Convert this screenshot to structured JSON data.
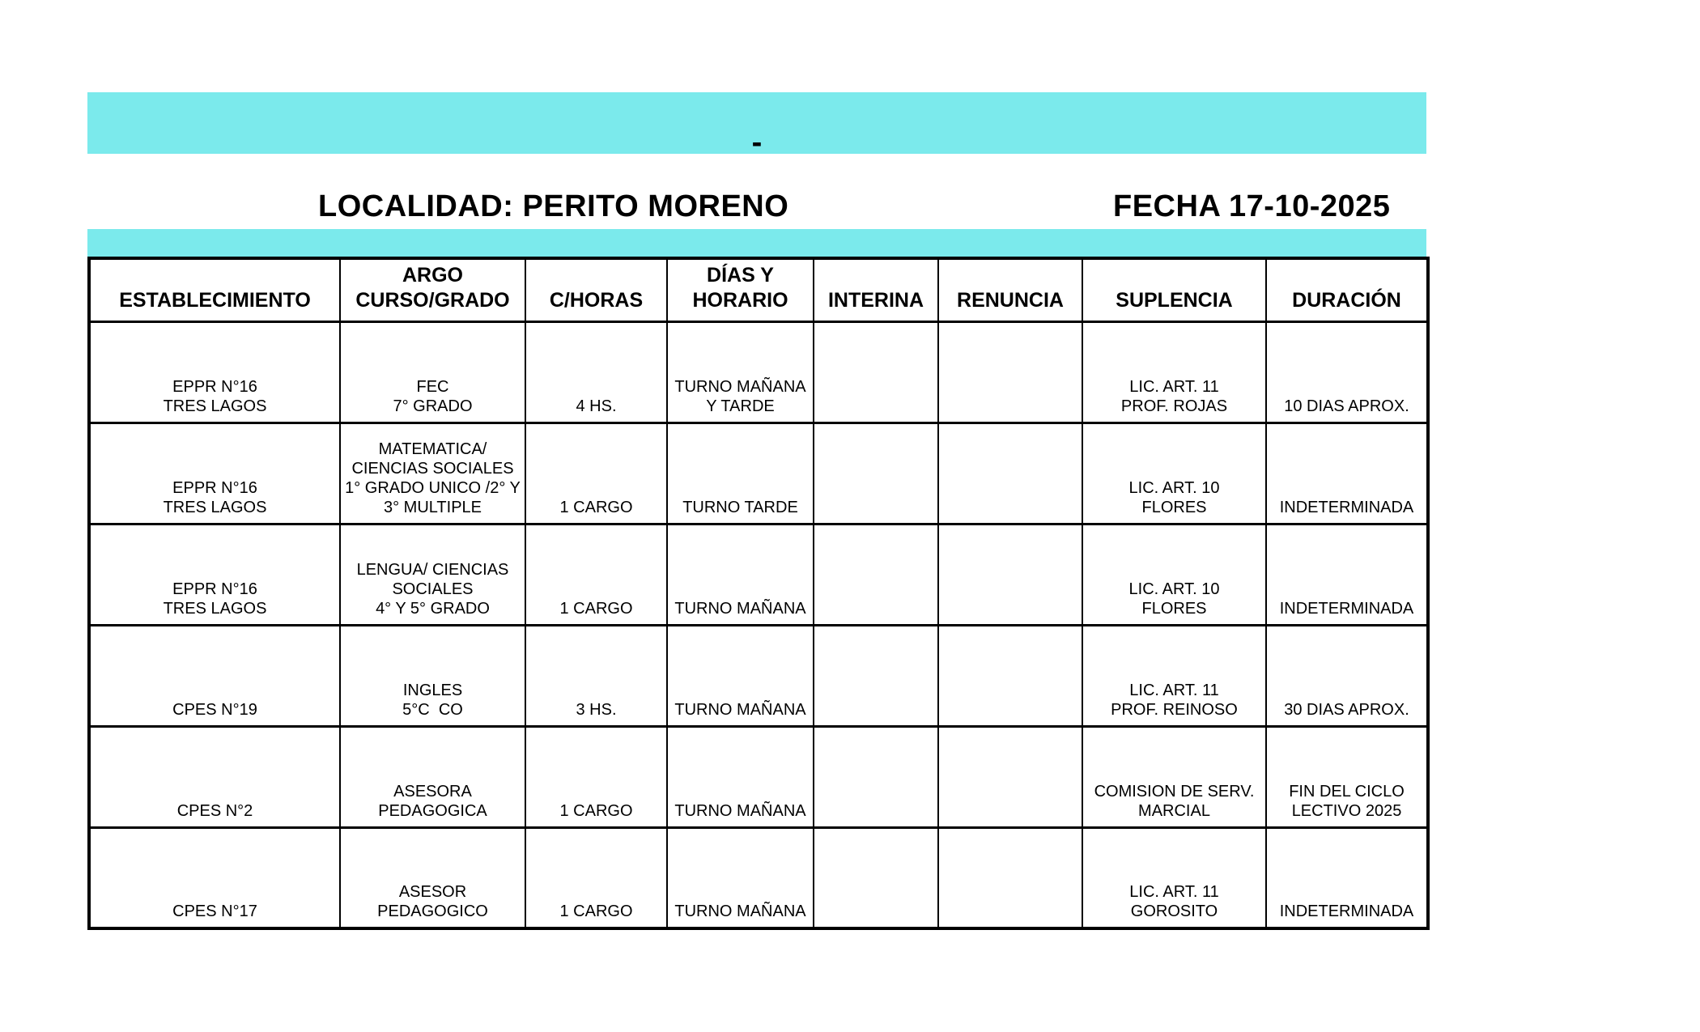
{
  "page": {
    "banner_dash": "-",
    "locality_label": "LOCALIDAD: PERITO MORENO",
    "date_label": "FECHA 17-10-2025"
  },
  "colors": {
    "banner_fill": "#7BEAEC",
    "border": "#000000",
    "background": "#FFFFFF",
    "text": "#000000"
  },
  "table": {
    "columns": [
      {
        "key": "establecimiento",
        "label": "ESTABLECIMIENTO"
      },
      {
        "key": "argo_curso_grado",
        "label": "ARGO\nCURSO/GRADO"
      },
      {
        "key": "c_horas",
        "label": "C/HORAS"
      },
      {
        "key": "dias_y_horario",
        "label": "DÍAS Y\nHORARIO"
      },
      {
        "key": "interina",
        "label": "INTERINA"
      },
      {
        "key": "renuncia",
        "label": "RENUNCIA"
      },
      {
        "key": "suplencia",
        "label": "SUPLENCIA"
      },
      {
        "key": "duracion",
        "label": "DURACIÓN"
      }
    ],
    "rows": [
      {
        "establecimiento": "EPPR N°16\nTRES LAGOS",
        "argo_curso_grado": "FEC\n7° GRADO",
        "c_horas": "4 HS.",
        "dias_y_horario": "TURNO MAÑANA\nY TARDE",
        "interina": "",
        "renuncia": "",
        "suplencia": "LIC. ART. 11\nPROF. ROJAS",
        "duracion": "10 DIAS APROX."
      },
      {
        "establecimiento": "EPPR N°16\nTRES LAGOS",
        "argo_curso_grado": "MATEMATICA/\nCIENCIAS SOCIALES\n1° GRADO UNICO /2° Y\n3° MULTIPLE",
        "c_horas": "1 CARGO",
        "dias_y_horario": "TURNO TARDE",
        "interina": "",
        "renuncia": "",
        "suplencia": "LIC. ART. 10\nFLORES",
        "duracion": "INDETERMINADA"
      },
      {
        "establecimiento": "EPPR N°16\nTRES LAGOS",
        "argo_curso_grado": "LENGUA/ CIENCIAS\nSOCIALES\n4° Y 5° GRADO",
        "c_horas": "1 CARGO",
        "dias_y_horario": "TURNO MAÑANA",
        "interina": "",
        "renuncia": "",
        "suplencia": "LIC. ART. 10\nFLORES",
        "duracion": "INDETERMINADA"
      },
      {
        "establecimiento": "CPES N°19",
        "argo_curso_grado": "INGLES\n5°C  CO",
        "c_horas": "3 HS.",
        "dias_y_horario": "TURNO MAÑANA",
        "interina": "",
        "renuncia": "",
        "suplencia": "LIC. ART. 11\nPROF. REINOSO",
        "duracion": "30 DIAS APROX."
      },
      {
        "establecimiento": "CPES N°2",
        "argo_curso_grado": "ASESORA PEDAGOGICA",
        "c_horas": "1 CARGO",
        "dias_y_horario": "TURNO MAÑANA",
        "interina": "",
        "renuncia": "",
        "suplencia": "COMISION DE SERV.\nMARCIAL",
        "duracion": "FIN DEL CICLO\nLECTIVO 2025"
      },
      {
        "establecimiento": "CPES N°17",
        "argo_curso_grado": "ASESOR PEDAGOGICO",
        "c_horas": "1 CARGO",
        "dias_y_horario": "TURNO MAÑANA",
        "interina": "",
        "renuncia": "",
        "suplencia": "LIC. ART. 11\nGOROSITO",
        "duracion": "INDETERMINADA"
      }
    ]
  }
}
